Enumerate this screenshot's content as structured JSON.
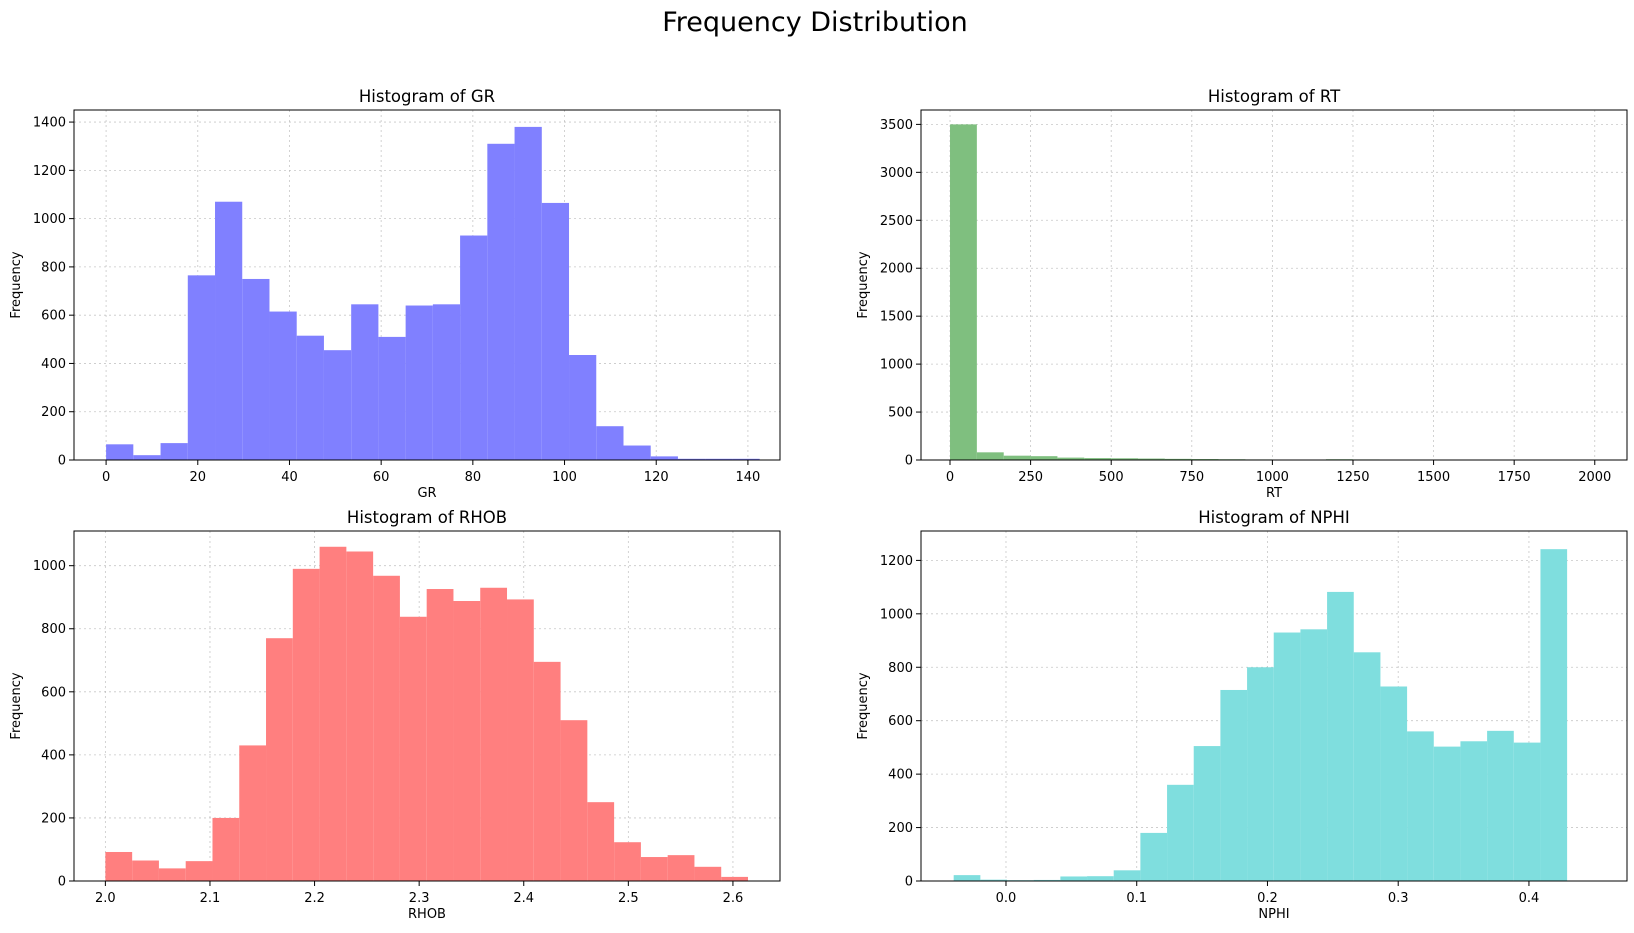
{
  "figure": {
    "title": "Frequency Distribution"
  },
  "chart_data": [
    {
      "type": "bar",
      "title": "Histogram of GR",
      "xlabel": "GR",
      "ylabel": "Frequency",
      "color": "#8080ff",
      "xlim": [
        -7,
        147
      ],
      "ylim": [
        0,
        1450
      ],
      "xticks": [
        0,
        20,
        40,
        60,
        80,
        100,
        120,
        140
      ],
      "yticks": [
        0,
        200,
        400,
        600,
        800,
        1000,
        1200,
        1400
      ],
      "grid": true,
      "bin_edges": [
        0,
        5.94,
        11.88,
        17.82,
        23.76,
        29.7,
        35.64,
        41.58,
        47.52,
        53.46,
        59.4,
        65.34,
        71.28,
        77.22,
        83.16,
        89.1,
        95.04,
        100.98,
        106.92,
        112.86,
        118.8,
        124.74,
        130.68,
        136.62,
        142.56
      ],
      "values": [
        65,
        20,
        70,
        765,
        1070,
        750,
        615,
        515,
        455,
        645,
        510,
        640,
        645,
        930,
        1310,
        1380,
        1065,
        435,
        140,
        60,
        15,
        5,
        5,
        5
      ]
    },
    {
      "type": "bar",
      "title": "Histogram of RT",
      "xlabel": "RT",
      "ylabel": "Frequency",
      "color": "#7fbf7f",
      "xlim": [
        -90,
        2100
      ],
      "ylim": [
        0,
        3650
      ],
      "xticks": [
        0,
        250,
        500,
        750,
        1000,
        1250,
        1500,
        1750,
        2000
      ],
      "yticks": [
        0,
        500,
        1000,
        1500,
        2000,
        2500,
        3000,
        3500
      ],
      "grid": true,
      "bin_edges": [
        0,
        83.3,
        166.6,
        249.9,
        333.2,
        416.5,
        499.8,
        583.1,
        666.4,
        749.7,
        833,
        916.3,
        999.6,
        1082.9,
        1166.2,
        1249.5,
        1332.8,
        1416.1,
        1499.4,
        1582.7,
        1666,
        1749.3,
        1832.6,
        1915.9,
        1999.2
      ],
      "values": [
        3500,
        80,
        45,
        40,
        25,
        20,
        18,
        15,
        12,
        10,
        8,
        6,
        5,
        4,
        8,
        6,
        5,
        4,
        3,
        2,
        2,
        1,
        1,
        5
      ]
    },
    {
      "type": "bar",
      "title": "Histogram of RHOB",
      "xlabel": "RHOB",
      "ylabel": "Frequency",
      "color": "#ff7f7f",
      "xlim": [
        1.97,
        2.645
      ],
      "ylim": [
        0,
        1110
      ],
      "xticks": [
        2.0,
        2.1,
        2.2,
        2.3,
        2.4,
        2.5,
        2.6
      ],
      "xtick_labels": [
        "2.0",
        "2.1",
        "2.2",
        "2.3",
        "2.4",
        "2.5",
        "2.6"
      ],
      "yticks": [
        0,
        200,
        400,
        600,
        800,
        1000
      ],
      "grid": true,
      "bin_edges": [
        2.0,
        2.0256,
        2.0512,
        2.0768,
        2.1024,
        2.128,
        2.1536,
        2.1792,
        2.2048,
        2.2304,
        2.256,
        2.2816,
        2.3072,
        2.3328,
        2.3584,
        2.384,
        2.4096,
        2.4352,
        2.4608,
        2.4864,
        2.512,
        2.5376,
        2.5632,
        2.5888,
        2.6144
      ],
      "values": [
        92,
        65,
        40,
        63,
        200,
        430,
        770,
        990,
        1060,
        1045,
        968,
        838,
        926,
        888,
        930,
        893,
        695,
        510,
        250,
        123,
        76,
        82,
        45,
        13
      ]
    },
    {
      "type": "bar",
      "title": "Histogram of NPHI",
      "xlabel": "NPHI",
      "ylabel": "Frequency",
      "color": "#7fdede",
      "xlim": [
        -0.065,
        0.475
      ],
      "ylim": [
        0,
        1310
      ],
      "xticks": [
        0.0,
        0.1,
        0.2,
        0.3,
        0.4
      ],
      "xtick_labels": [
        "0.0",
        "0.1",
        "0.2",
        "0.3",
        "0.4"
      ],
      "yticks": [
        0,
        200,
        400,
        600,
        800,
        1000,
        1200
      ],
      "grid": true,
      "bin_edges": [
        -0.04,
        -0.0196,
        0.0008,
        0.0212,
        0.0416,
        0.062,
        0.0824,
        0.1028,
        0.1232,
        0.1436,
        0.164,
        0.1844,
        0.2048,
        0.2252,
        0.2456,
        0.266,
        0.2864,
        0.3068,
        0.3272,
        0.3476,
        0.368,
        0.3884,
        0.4088,
        0.4292,
        0.4496
      ],
      "values": [
        22,
        5,
        3,
        4,
        17,
        18,
        40,
        180,
        360,
        505,
        715,
        800,
        930,
        942,
        1082,
        856,
        728,
        560,
        503,
        523,
        562,
        518,
        1242,
        0
      ]
    }
  ]
}
